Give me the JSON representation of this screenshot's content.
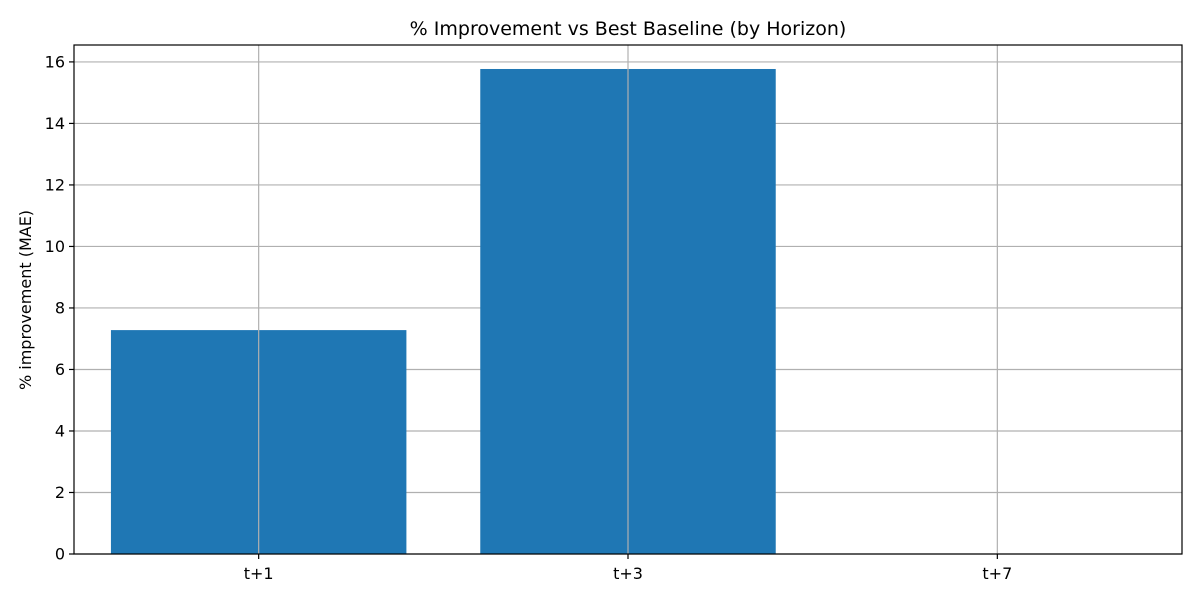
{
  "chart_data": {
    "type": "bar",
    "title": "% Improvement vs Best Baseline (by Horizon)",
    "xlabel": "",
    "ylabel": "% improvement (MAE)",
    "categories": [
      "t+1",
      "t+3",
      "t+7"
    ],
    "values": [
      7.28,
      15.77,
      0
    ],
    "ylim": [
      0,
      16.55
    ],
    "yticks": [
      0,
      2,
      4,
      6,
      8,
      10,
      12,
      14,
      16
    ],
    "grid": true,
    "legend": "none",
    "colors": {
      "bar": "#1f77b4",
      "grid": "#b0b0b0",
      "axis": "#000000"
    }
  }
}
